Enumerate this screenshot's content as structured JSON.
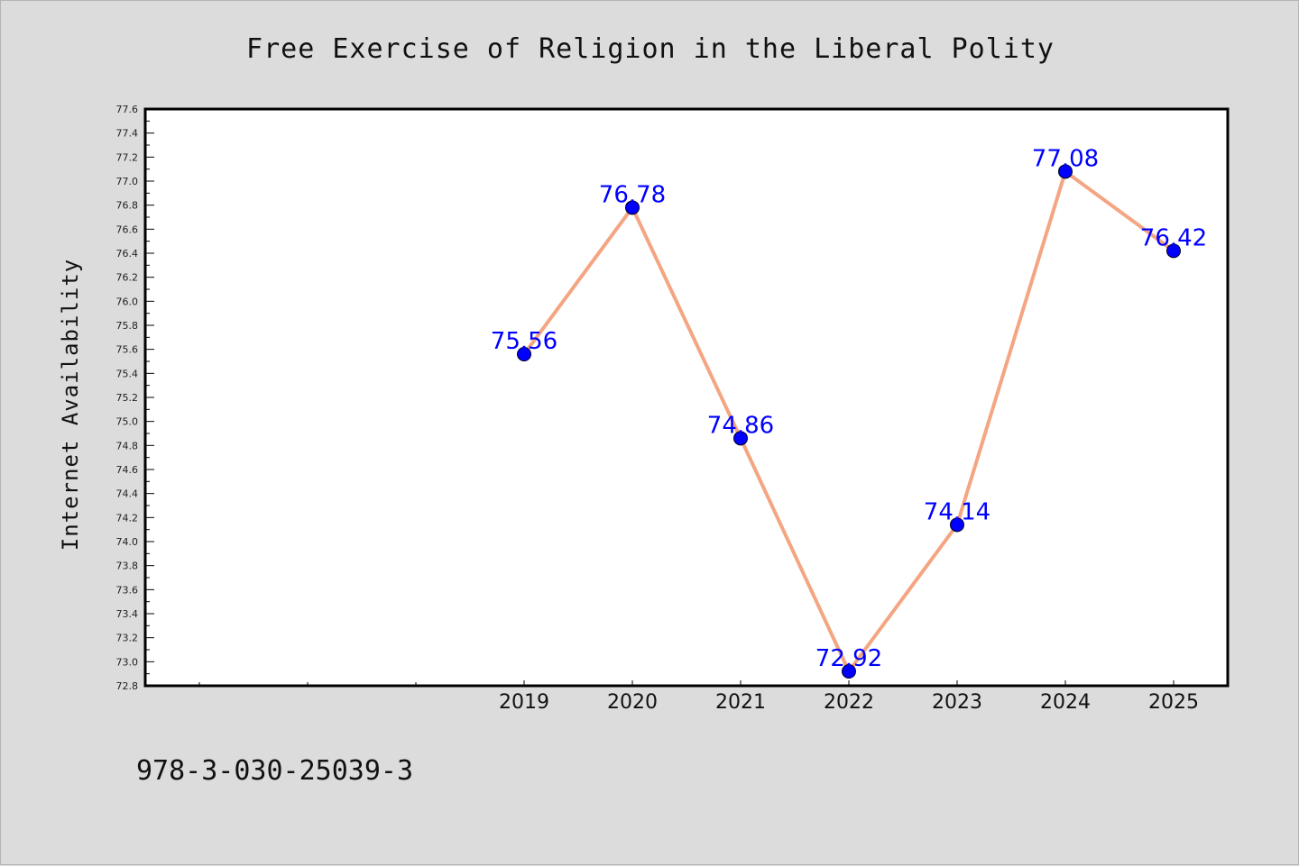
{
  "chart_data": {
    "type": "line",
    "title": "Free Exercise of Religion in the Liberal Polity",
    "xlabel": "",
    "ylabel": "Internet Availability",
    "x": [
      "2019",
      "2020",
      "2021",
      "2022",
      "2023",
      "2024",
      "2025"
    ],
    "series": [
      {
        "values": [
          75.56,
          76.78,
          74.86,
          72.92,
          74.14,
          77.08,
          76.42
        ],
        "data_labels": [
          "75.56",
          "76.78",
          "74.86",
          "72.92",
          "74.14",
          "77.08",
          "76.42"
        ],
        "line_color": "#f4a582",
        "marker_color": "#0000ff"
      }
    ],
    "ylim": [
      72.8,
      77.6
    ],
    "yticks": [
      "72.8",
      "73.0",
      "73.2",
      "73.4",
      "73.6",
      "73.8",
      "74.0",
      "74.2",
      "74.4",
      "74.6",
      "74.8",
      "75.0",
      "75.2",
      "75.4",
      "75.6",
      "75.8",
      "76.0",
      "76.2",
      "76.4",
      "76.6",
      "76.8",
      "77.0",
      "77.2",
      "77.4",
      "77.6"
    ],
    "grid": false,
    "legend": "none",
    "background_color": "#dcdcdc",
    "plot_background": "#ffffff",
    "label_color": "#0000ff"
  },
  "footer": {
    "isbn": "978-3-030-25039-3"
  }
}
